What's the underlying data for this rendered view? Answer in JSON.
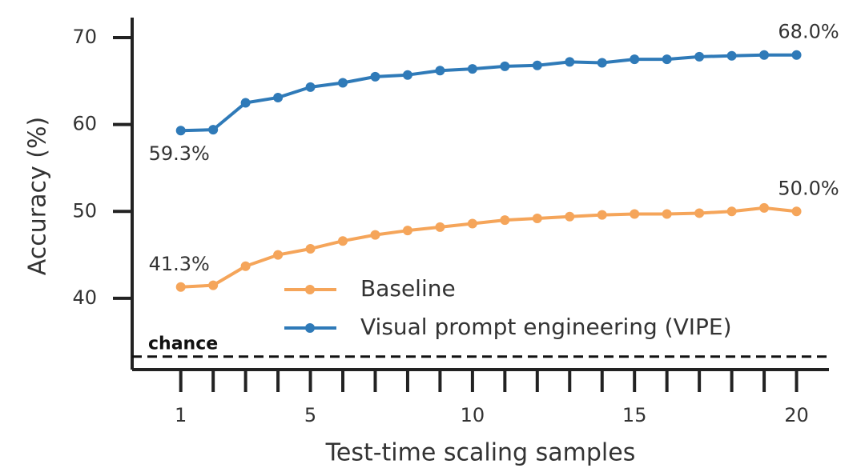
{
  "chart_data": {
    "type": "line",
    "xlabel": "Test-time scaling samples",
    "ylabel": "Accuracy (%)",
    "x": [
      1,
      2,
      3,
      4,
      5,
      6,
      7,
      8,
      9,
      10,
      11,
      12,
      13,
      14,
      15,
      16,
      17,
      18,
      19,
      20
    ],
    "series": [
      {
        "name": "Baseline",
        "color": "#f5a55a",
        "values": [
          41.3,
          41.5,
          43.7,
          45.0,
          45.7,
          46.6,
          47.3,
          47.8,
          48.2,
          48.6,
          49.0,
          49.2,
          49.4,
          49.6,
          49.7,
          49.7,
          49.8,
          50.0,
          50.4,
          50.0
        ],
        "value_labels": [
          "41.3%",
          null,
          null,
          null,
          null,
          null,
          null,
          null,
          null,
          null,
          null,
          null,
          null,
          null,
          null,
          null,
          null,
          null,
          null,
          "50.0%"
        ]
      },
      {
        "name": "Visual prompt engineering (VIPE)",
        "color": "#2f7ab8",
        "values": [
          59.3,
          59.4,
          62.5,
          63.1,
          64.3,
          64.8,
          65.5,
          65.7,
          66.2,
          66.4,
          66.7,
          66.8,
          67.2,
          67.1,
          67.5,
          67.5,
          67.8,
          67.9,
          68.0,
          68.0
        ],
        "value_labels": [
          "59.3%",
          null,
          null,
          null,
          null,
          null,
          null,
          null,
          null,
          null,
          null,
          null,
          null,
          null,
          null,
          null,
          null,
          null,
          null,
          "68.0%"
        ]
      }
    ],
    "chance": {
      "value": 33.3,
      "label": "chance"
    },
    "xlim": [
      -0.5,
      21
    ],
    "xticks": [
      1,
      5,
      10,
      15,
      20
    ],
    "xticks_minor": [
      2,
      3,
      4,
      6,
      7,
      8,
      9,
      11,
      12,
      13,
      14,
      16,
      17,
      18,
      19
    ],
    "ylim": [
      31.8,
      72.3
    ],
    "yticks": [
      40,
      50,
      60,
      70
    ],
    "grid": false,
    "legend": "lower right"
  }
}
